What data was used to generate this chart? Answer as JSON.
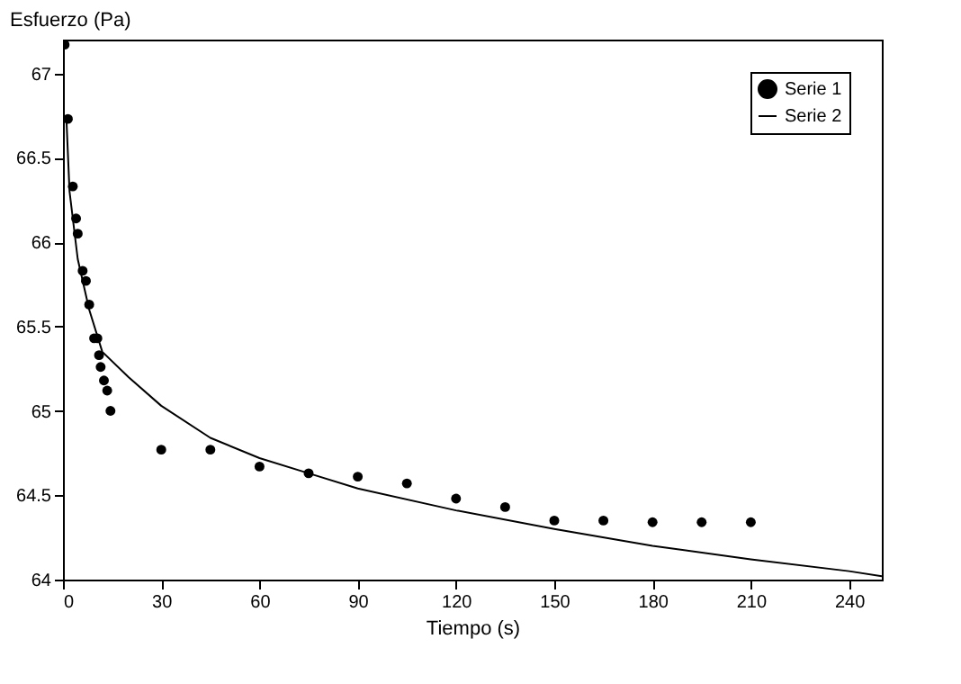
{
  "chart_data": {
    "type": "scatter",
    "xlabel": "Tiempo (s)",
    "ylabel": "Esfuerzo (Pa)",
    "xlim": [
      0,
      250
    ],
    "ylim": [
      64,
      67.2
    ],
    "xticks": [
      0,
      30,
      60,
      90,
      120,
      150,
      180,
      210,
      240
    ],
    "yticks": [
      64,
      64.5,
      65,
      65.5,
      66,
      66.5,
      67
    ],
    "grid": false,
    "legend": "top right",
    "series": [
      {
        "name": "Serie 1",
        "color": "#000000",
        "type": "scatter",
        "marker": "circle",
        "x": [
          0.5,
          1.5,
          3,
          4,
          4.5,
          6,
          7,
          8,
          9.5,
          10.5,
          11,
          11.5,
          12.5,
          13.5,
          14.5,
          30,
          45,
          60,
          75,
          90,
          105,
          120,
          135,
          150,
          165,
          180,
          195,
          210
        ],
        "values": [
          67.17,
          66.73,
          66.33,
          66.14,
          66.05,
          65.83,
          65.77,
          65.63,
          65.43,
          65.43,
          65.33,
          65.26,
          65.18,
          65.12,
          65.0,
          64.77,
          64.77,
          64.67,
          64.63,
          64.61,
          64.57,
          64.48,
          64.43,
          64.35,
          64.35,
          64.34,
          64.34,
          64.34
        ]
      },
      {
        "name": "Serie 2",
        "color": "#000000",
        "type": "line",
        "marker": "none",
        "line_style": "solid",
        "x": [
          1,
          2,
          4.5,
          8,
          12,
          20,
          30,
          45,
          60,
          75,
          90,
          120,
          150,
          180,
          210,
          240,
          250
        ],
        "values": [
          66.75,
          66.3,
          65.9,
          65.6,
          65.35,
          65.2,
          65.03,
          64.84,
          64.72,
          64.63,
          64.54,
          64.41,
          64.3,
          64.2,
          64.12,
          64.05,
          64.02
        ]
      }
    ]
  }
}
